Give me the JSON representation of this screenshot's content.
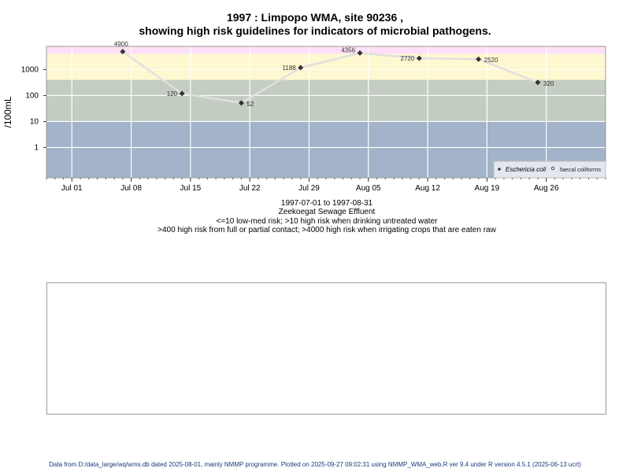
{
  "title_line1": "1997 : Limpopo WMA, site 90236 ,",
  "title_line2": "showing high risk guidelines for indicators of microbial pathogens.",
  "subtitle": {
    "date_range": "1997-07-01 to 1997-08-31",
    "site_name": "Zeekoegat Sewage Effluent",
    "guideline1": "<=10 low-med risk; >10 high risk when drinking untreated water",
    "guideline2": ">400 high risk from full or partial contact; >4000 high risk when irrigating crops that are eaten raw"
  },
  "footer": "Data from D:/data_large/wq/wms.db dated 2025-08-01, mainly NMMP programme. Plotted on 2025-09-27 09:02:31 using NMMP_WMA_web.R ver 9.4 under R version 4.5.1 (2025-06-13 ucrt)",
  "chart_data": {
    "type": "scatter",
    "title": "1997 : Limpopo WMA, site 90236 , showing high risk guidelines for indicators of microbial pathogens.",
    "xlabel": "",
    "ylabel": "/100mL",
    "y_scale": "log",
    "ylim": [
      0.068,
      7800
    ],
    "xlim": [
      "1997-06-28",
      "1997-09-02"
    ],
    "y_ticks": [
      1,
      10,
      100,
      1000
    ],
    "y_tick_labels": [
      "1",
      "10",
      "100",
      "1000"
    ],
    "x_ticks": [
      "1997-07-01",
      "1997-07-08",
      "1997-07-15",
      "1997-07-22",
      "1997-07-29",
      "1997-08-05",
      "1997-08-12",
      "1997-08-19",
      "1997-08-26"
    ],
    "x_tick_labels": [
      "Jul 01",
      "Jul 08",
      "Jul 15",
      "Jul 22",
      "Jul 29",
      "Aug 05",
      "Aug 12",
      "Aug 19",
      "Aug 26"
    ],
    "grid": true,
    "bands": [
      {
        "from": 4000,
        "to": 7800,
        "color": "#fde0f6"
      },
      {
        "from": 400,
        "to": 4000,
        "color": "#fdf8cf"
      },
      {
        "from": 10,
        "to": 400,
        "color": "#c3cdc1"
      },
      {
        "from": 0.068,
        "to": 10,
        "color": "#a2b3ca"
      }
    ],
    "series": [
      {
        "name": "Eschericia coli",
        "marker": "filled",
        "color": "#333333",
        "line_color": "#e0e0e0",
        "x": [
          "1997-07-07",
          "1997-07-14",
          "1997-07-21",
          "1997-07-28",
          "1997-08-04",
          "1997-08-11",
          "1997-08-18",
          "1997-08-25"
        ],
        "y": [
          4900,
          120,
          52,
          1188,
          4356,
          2720,
          2520,
          320
        ],
        "labels": [
          "4900",
          "120",
          "52",
          "1188",
          "4356",
          "2720",
          "2520",
          "320"
        ]
      },
      {
        "name": "faecal coliforms",
        "marker": "open",
        "color": "#333333",
        "x": [],
        "y": []
      }
    ],
    "legend_position": "bottom-right"
  }
}
